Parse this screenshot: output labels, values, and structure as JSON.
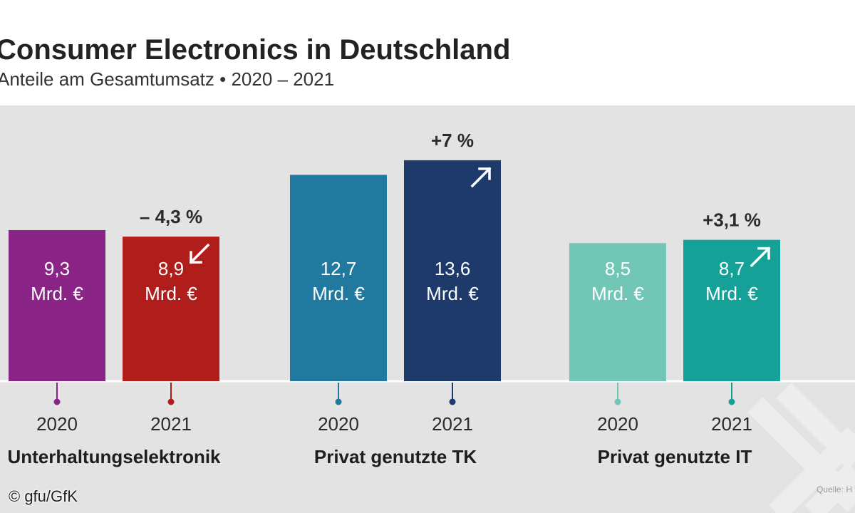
{
  "header": {
    "title": "Consumer Electronics in Deutschland",
    "subtitle": "Anteile am Gesamtumsatz • 2020 – 2021"
  },
  "footer": {
    "credit": "© gfu/GfK",
    "source": "Quelle: H"
  },
  "chart_data": {
    "type": "bar",
    "unit": "Mrd. €",
    "ylim": [
      0,
      16
    ],
    "grid": false,
    "groups": [
      {
        "name": "Unterhaltungselektronik",
        "change": "– 4,3 %",
        "trend": "down",
        "bars": [
          {
            "year": "2020",
            "value": 9.3,
            "label": "9,3",
            "color": "#8b2487"
          },
          {
            "year": "2021",
            "value": 8.9,
            "label": "8,9",
            "color": "#b01e1b"
          }
        ]
      },
      {
        "name": "Privat genutzte TK",
        "change": "+7 %",
        "trend": "up",
        "bars": [
          {
            "year": "2020",
            "value": 12.7,
            "label": "12,7",
            "color": "#21799f"
          },
          {
            "year": "2021",
            "value": 13.6,
            "label": "13,6",
            "color": "#1d3a6b"
          }
        ]
      },
      {
        "name": "Privat genutzte IT",
        "change": "+3,1 %",
        "trend": "up",
        "bars": [
          {
            "year": "2020",
            "value": 8.5,
            "label": "8,5",
            "color": "#72c6b6"
          },
          {
            "year": "2021",
            "value": 8.7,
            "label": "8,7",
            "color": "#16a198"
          }
        ]
      }
    ],
    "colors": {
      "baseline": "#ffffff",
      "text": "#2b2b2b",
      "bar_text": "#ffffff",
      "background": "#e3e3e3"
    }
  }
}
